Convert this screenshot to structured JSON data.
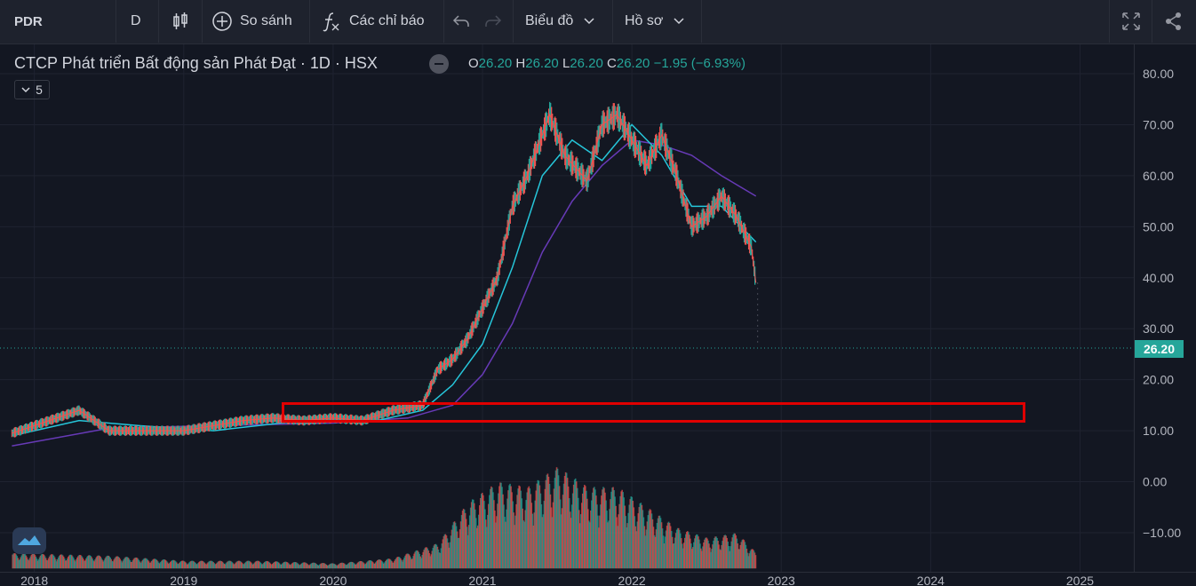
{
  "toolbar": {
    "symbol": "PDR",
    "interval": "D",
    "compare_label": "So sánh",
    "indicators_label": "Các chỉ báo",
    "chart_menu_label": "Biểu đồ",
    "profile_menu_label": "Hồ sơ",
    "icons": [
      "candlestick-icon",
      "plus-circle-icon",
      "function-icon",
      "undo-icon",
      "redo-icon",
      "fullscreen-icon",
      "share-icon"
    ]
  },
  "legend": {
    "title": "CTCP Phát triển Bất động sản Phát Đạt · 1D · HSX",
    "o_label": "O",
    "o_value": "26.20",
    "h_label": "H",
    "h_value": "26.20",
    "l_label": "L",
    "l_value": "26.20",
    "c_label": "C",
    "c_value": "26.20",
    "change": "−1.95 (−6.93%)",
    "indicator_count": "5"
  },
  "last_price": "26.20",
  "colors": {
    "up": "#26a69a",
    "down": "#ef5350",
    "ma_fast": "#ef5350",
    "ma_mid": "#26c6da",
    "ma_slow": "#673ab7",
    "highlight_box": "#e00000"
  },
  "chart_data": {
    "type": "line",
    "title": "CTCP Phát triển Bất động sản Phát Đạt · 1D · HSX",
    "y_ticks": [
      "80.00",
      "70.00",
      "60.00",
      "50.00",
      "40.00",
      "30.00",
      "20.00",
      "10.00",
      "0.00",
      "−10.00"
    ],
    "x_ticks": [
      "2018",
      "2019",
      "2020",
      "2021",
      "2022",
      "2023",
      "2024",
      "2025"
    ],
    "ylim": [
      -15,
      85
    ],
    "price_series": {
      "name": "",
      "x": [
        2017.85,
        2018.1,
        2018.3,
        2018.5,
        2018.7,
        2019.0,
        2019.2,
        2019.4,
        2019.6,
        2019.8,
        2020.0,
        2020.2,
        2020.4,
        2020.6,
        2020.7,
        2020.8,
        2020.9,
        2021.0,
        2021.1,
        2021.2,
        2021.3,
        2021.45,
        2021.55,
        2021.7,
        2021.8,
        2021.9,
        2022.0,
        2022.1,
        2022.2,
        2022.3,
        2022.4,
        2022.5,
        2022.6,
        2022.7,
        2022.8,
        2022.83
      ],
      "y": [
        9.5,
        12,
        14,
        10,
        10,
        10,
        11,
        12,
        12.5,
        12,
        12.5,
        12,
        14,
        15,
        22,
        24,
        28,
        34,
        40,
        54,
        60,
        72,
        64,
        59,
        70,
        72,
        67,
        62,
        68,
        60,
        50,
        52,
        56,
        52,
        46,
        39
      ]
    },
    "ma_mid": {
      "x": [
        2017.85,
        2018.3,
        2018.7,
        2019.2,
        2019.8,
        2020.3,
        2020.6,
        2020.8,
        2021.0,
        2021.2,
        2021.4,
        2021.6,
        2021.8,
        2022.0,
        2022.2,
        2022.4,
        2022.6,
        2022.83
      ],
      "y": [
        9,
        12,
        11,
        10,
        12,
        12,
        14,
        19,
        27,
        42,
        60,
        67,
        63,
        70,
        64,
        54,
        54,
        47
      ]
    },
    "ma_slow": {
      "x": [
        2017.85,
        2018.5,
        2019.2,
        2020.0,
        2020.5,
        2020.8,
        2021.0,
        2021.2,
        2021.4,
        2021.6,
        2021.8,
        2022.0,
        2022.2,
        2022.4,
        2022.6,
        2022.83
      ],
      "y": [
        7,
        10.5,
        11,
        11.5,
        12.5,
        15,
        21,
        31,
        45,
        55,
        62,
        67,
        66,
        64,
        60,
        56
      ]
    },
    "volume_profile": {
      "x": [
        2017.85,
        2018.5,
        2019.0,
        2019.5,
        2020.0,
        2020.4,
        2020.7,
        2020.9,
        2021.1,
        2021.3,
        2021.5,
        2021.7,
        2021.9,
        2022.1,
        2022.3,
        2022.5,
        2022.7,
        2022.83
      ],
      "y": [
        3,
        2.5,
        1.5,
        1.5,
        1,
        2,
        5,
        13,
        17,
        16,
        20,
        16,
        16,
        12,
        8,
        6,
        7,
        3
      ]
    },
    "grid": true,
    "legend": "top-left"
  }
}
